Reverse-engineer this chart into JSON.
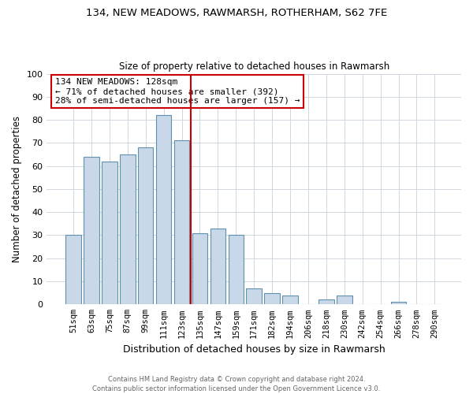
{
  "title1": "134, NEW MEADOWS, RAWMARSH, ROTHERHAM, S62 7FE",
  "title2": "Size of property relative to detached houses in Rawmarsh",
  "xlabel": "Distribution of detached houses by size in Rawmarsh",
  "ylabel": "Number of detached properties",
  "bar_labels": [
    "51sqm",
    "63sqm",
    "75sqm",
    "87sqm",
    "99sqm",
    "111sqm",
    "123sqm",
    "135sqm",
    "147sqm",
    "159sqm",
    "171sqm",
    "182sqm",
    "194sqm",
    "206sqm",
    "218sqm",
    "230sqm",
    "242sqm",
    "254sqm",
    "266sqm",
    "278sqm",
    "290sqm"
  ],
  "bar_values": [
    30,
    64,
    62,
    65,
    68,
    82,
    71,
    31,
    33,
    30,
    7,
    5,
    4,
    0,
    2,
    4,
    0,
    0,
    1,
    0,
    0
  ],
  "bar_color": "#c8d8e8",
  "bar_edge_color": "#6090b0",
  "vline_x_index": 6.5,
  "vline_color": "#cc0000",
  "annotation_title": "134 NEW MEADOWS: 128sqm",
  "annotation_line1": "← 71% of detached houses are smaller (392)",
  "annotation_line2": "28% of semi-detached houses are larger (157) →",
  "annotation_box_color": "#ffffff",
  "annotation_box_edge_color": "#cc0000",
  "ylim": [
    0,
    100
  ],
  "yticks": [
    0,
    10,
    20,
    30,
    40,
    50,
    60,
    70,
    80,
    90,
    100
  ],
  "footer1": "Contains HM Land Registry data © Crown copyright and database right 2024.",
  "footer2": "Contains public sector information licensed under the Open Government Licence v3.0.",
  "bg_color": "#ffffff",
  "grid_color": "#c8d0d8"
}
